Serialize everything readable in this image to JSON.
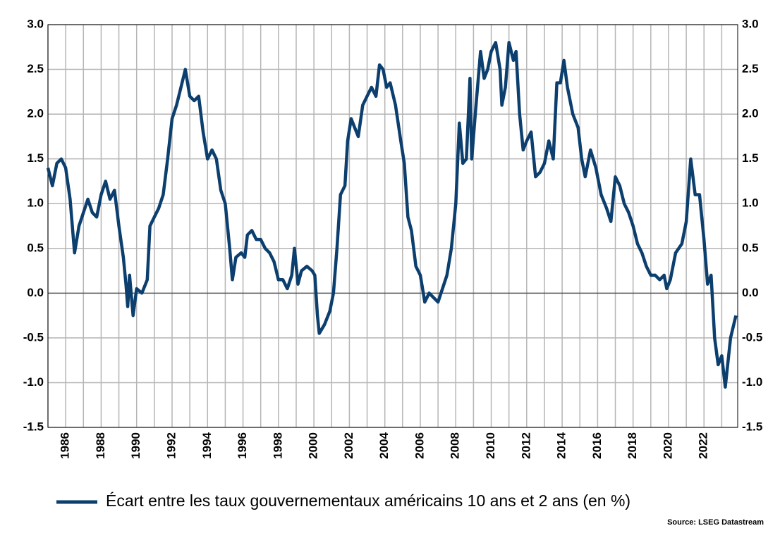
{
  "chart_data": {
    "type": "line",
    "x": [
      1985.0,
      1985.25,
      1985.5,
      1985.75,
      1986.0,
      1986.25,
      1986.5,
      1986.75,
      1987.0,
      1987.25,
      1987.5,
      1987.75,
      1988.0,
      1988.25,
      1988.5,
      1988.75,
      1989.0,
      1989.25,
      1989.4,
      1989.5,
      1989.6,
      1989.8,
      1990.0,
      1990.3,
      1990.6,
      1990.75,
      1991.0,
      1991.25,
      1991.5,
      1991.75,
      1992.0,
      1992.25,
      1992.5,
      1992.75,
      1993.0,
      1993.25,
      1993.5,
      1993.75,
      1994.0,
      1994.25,
      1994.5,
      1994.75,
      1995.0,
      1995.25,
      1995.4,
      1995.6,
      1995.9,
      1996.1,
      1996.25,
      1996.5,
      1996.75,
      1997.0,
      1997.25,
      1997.5,
      1997.75,
      1998.0,
      1998.25,
      1998.5,
      1998.75,
      1998.9,
      1999.1,
      1999.3,
      1999.6,
      1999.9,
      2000.05,
      2000.2,
      2000.3,
      2000.6,
      2000.9,
      2001.1,
      2001.3,
      2001.5,
      2001.75,
      2001.9,
      2002.1,
      2002.3,
      2002.5,
      2002.75,
      2003.0,
      2003.25,
      2003.5,
      2003.7,
      2003.9,
      2004.1,
      2004.3,
      2004.6,
      2004.9,
      2005.1,
      2005.3,
      2005.5,
      2005.75,
      2006.0,
      2006.25,
      2006.5,
      2006.75,
      2007.0,
      2007.25,
      2007.5,
      2007.75,
      2008.0,
      2008.2,
      2008.4,
      2008.6,
      2008.8,
      2008.9,
      2009.1,
      2009.4,
      2009.6,
      2009.8,
      2010.0,
      2010.25,
      2010.5,
      2010.6,
      2010.8,
      2011.0,
      2011.25,
      2011.4,
      2011.6,
      2011.8,
      2012.0,
      2012.25,
      2012.5,
      2012.75,
      2013.0,
      2013.25,
      2013.5,
      2013.7,
      2013.9,
      2014.1,
      2014.3,
      2014.6,
      2014.9,
      2015.1,
      2015.3,
      2015.6,
      2015.9,
      2016.2,
      2016.5,
      2016.75,
      2017.0,
      2017.25,
      2017.5,
      2017.75,
      2018.0,
      2018.25,
      2018.5,
      2018.75,
      2019.0,
      2019.25,
      2019.5,
      2019.75,
      2019.9,
      2020.1,
      2020.4,
      2020.75,
      2021.0,
      2021.25,
      2021.5,
      2021.75,
      2022.0,
      2022.2,
      2022.4,
      2022.6,
      2022.8,
      2023.0,
      2023.2,
      2023.5,
      2023.8
    ],
    "series": [
      {
        "name": "Écart entre les taux gouvernementaux américains 10 ans et 2 ans (en %)",
        "color": "#0c3f6e",
        "values": [
          1.4,
          1.2,
          1.45,
          1.5,
          1.4,
          1.05,
          0.45,
          0.75,
          0.9,
          1.05,
          0.9,
          0.85,
          1.1,
          1.25,
          1.05,
          1.15,
          0.75,
          0.4,
          0.1,
          -0.15,
          0.2,
          -0.25,
          0.05,
          0.0,
          0.15,
          0.75,
          0.85,
          0.95,
          1.1,
          1.5,
          1.95,
          2.1,
          2.3,
          2.5,
          2.2,
          2.15,
          2.2,
          1.8,
          1.5,
          1.6,
          1.5,
          1.15,
          1.0,
          0.5,
          0.15,
          0.4,
          0.45,
          0.4,
          0.65,
          0.7,
          0.6,
          0.6,
          0.5,
          0.45,
          0.35,
          0.15,
          0.15,
          0.05,
          0.2,
          0.5,
          0.1,
          0.25,
          0.3,
          0.25,
          0.2,
          -0.25,
          -0.45,
          -0.35,
          -0.2,
          0.0,
          0.5,
          1.1,
          1.2,
          1.7,
          1.95,
          1.85,
          1.75,
          2.1,
          2.2,
          2.3,
          2.2,
          2.55,
          2.5,
          2.3,
          2.35,
          2.1,
          1.7,
          1.45,
          0.85,
          0.7,
          0.3,
          0.2,
          -0.1,
          0.0,
          -0.05,
          -0.1,
          0.05,
          0.2,
          0.5,
          1.0,
          1.9,
          1.45,
          1.5,
          2.4,
          1.5,
          2.0,
          2.7,
          2.4,
          2.5,
          2.7,
          2.8,
          2.5,
          2.1,
          2.3,
          2.8,
          2.6,
          2.7,
          2.0,
          1.6,
          1.7,
          1.8,
          1.3,
          1.35,
          1.45,
          1.7,
          1.5,
          2.35,
          2.35,
          2.6,
          2.3,
          2.0,
          1.85,
          1.5,
          1.3,
          1.6,
          1.4,
          1.1,
          0.95,
          0.8,
          1.3,
          1.2,
          1.0,
          0.9,
          0.75,
          0.55,
          0.45,
          0.3,
          0.2,
          0.2,
          0.15,
          0.2,
          0.05,
          0.15,
          0.45,
          0.55,
          0.8,
          1.5,
          1.1,
          1.1,
          0.6,
          0.1,
          0.2,
          -0.5,
          -0.8,
          -0.7,
          -1.05,
          -0.5,
          -0.25
        ]
      }
    ],
    "xlim": [
      1985,
      2023.9
    ],
    "xticks": [
      1986,
      1988,
      1990,
      1992,
      1994,
      1996,
      1998,
      2000,
      2002,
      2004,
      2006,
      2008,
      2010,
      2012,
      2014,
      2016,
      2018,
      2020,
      2022
    ],
    "xgrid": [
      1985,
      1986,
      1987,
      1988,
      1989,
      1990,
      1991,
      1992,
      1993,
      1994,
      1995,
      1996,
      1997,
      1998,
      1999,
      2000,
      2001,
      2002,
      2003,
      2004,
      2005,
      2006,
      2007,
      2008,
      2009,
      2010,
      2011,
      2012,
      2013,
      2014,
      2015,
      2016,
      2017,
      2018,
      2019,
      2020,
      2021,
      2022,
      2023
    ],
    "ylim": [
      -1.5,
      3
    ],
    "yticks": [
      {
        "value": 3,
        "label": "3.0"
      },
      2.5,
      {
        "value": 2,
        "label": "2.0"
      },
      1.5,
      {
        "value": 1,
        "label": "1.0"
      },
      0.5,
      {
        "value": 0,
        "label": "0.0"
      },
      -0.5,
      {
        "value": -1,
        "label": "-1.0"
      },
      -1.5
    ],
    "grid": true,
    "source": "Source: LSEG Datastream"
  }
}
